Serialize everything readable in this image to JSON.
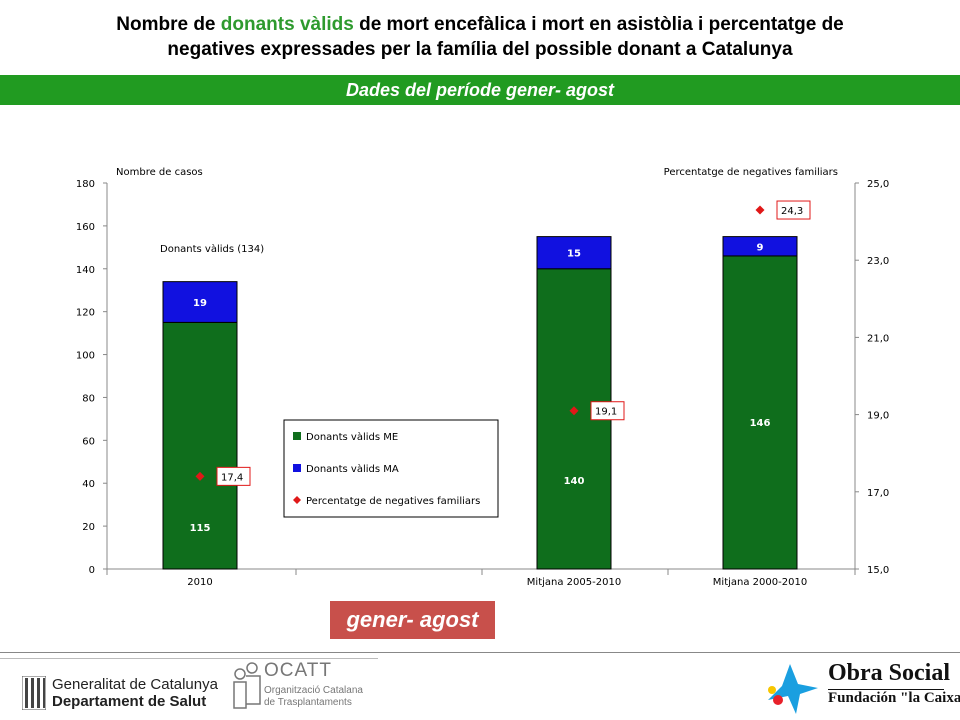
{
  "header": {
    "title_part1": "Nombre de ",
    "title_highlight": "donants vàlids",
    "title_part2": " de mort encefàlica i mort en asistòlia i percentatge de",
    "title_line2": "negatives expressades per la família del possible donant a Catalunya",
    "highlight_color": "#2e9a2e"
  },
  "banner": {
    "text": "Dades del període gener- agost",
    "color": "#219b21"
  },
  "chart_data": {
    "type": "bar",
    "stacked": true,
    "categories": [
      "2010",
      "",
      "Mitjana 2005-2010",
      "Mitjana 2000-2010"
    ],
    "series": [
      {
        "name": "Donants vàlids ME",
        "values": [
          115,
          null,
          140,
          146
        ],
        "color": "#0f6e1c",
        "label_color": "#ffffff"
      },
      {
        "name": "Donants vàlids MA",
        "values": [
          19,
          null,
          15,
          9
        ],
        "color": "#1111e0",
        "label_color": "#ffffff"
      }
    ],
    "line_series": {
      "name": "Percentatge de negatives familiars",
      "values": [
        "17,4",
        null,
        "19,1",
        "24,3"
      ],
      "numeric_values": [
        17.4,
        null,
        19.1,
        24.3
      ],
      "color": "#e01818",
      "axis": "right"
    },
    "y_left": {
      "label": "Nombre de casos",
      "range": [
        0,
        180
      ],
      "ticks": [
        "0",
        "20",
        "40",
        "60",
        "80",
        "100",
        "120",
        "140",
        "160",
        "180"
      ]
    },
    "y_right": {
      "label": "Percentatge de negatives familiars",
      "range": [
        15,
        25
      ],
      "ticks": [
        "15,0",
        "17,0",
        "19,0",
        "21,0",
        "23,0",
        "25,0"
      ]
    },
    "annotation": "Donants vàlids (134)",
    "legend_position": "center"
  },
  "period_box": {
    "text": "gener- agost",
    "color": "#c8504b"
  },
  "footer": {
    "gencat_line1": "Generalitat de Catalunya",
    "gencat_line2": "Departament de Salut",
    "ocatt_title": "OCATT",
    "ocatt_line1": "Organització Catalana",
    "ocatt_line2": "de Trasplantaments",
    "obra_title": "Obra Social",
    "obra_sub": "Fundación \"la Caixa\""
  }
}
